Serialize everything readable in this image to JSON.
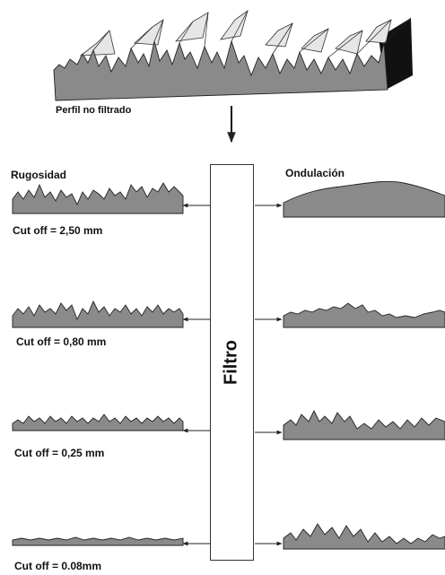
{
  "diagram": {
    "top_label": "Perfil no filtrado",
    "left_heading": "Rugosidad",
    "right_heading": "Ondulación",
    "filter_label": "Filtro",
    "cutoffs": [
      "Cut off = 2,50 mm",
      "Cut off = 0,80 mm",
      "Cut off = 0,25 mm",
      "Cut off = 0.08mm"
    ]
  },
  "colors": {
    "profile_fill": "#8a8a8a",
    "block_side": "#111111",
    "stroke": "#222222"
  }
}
